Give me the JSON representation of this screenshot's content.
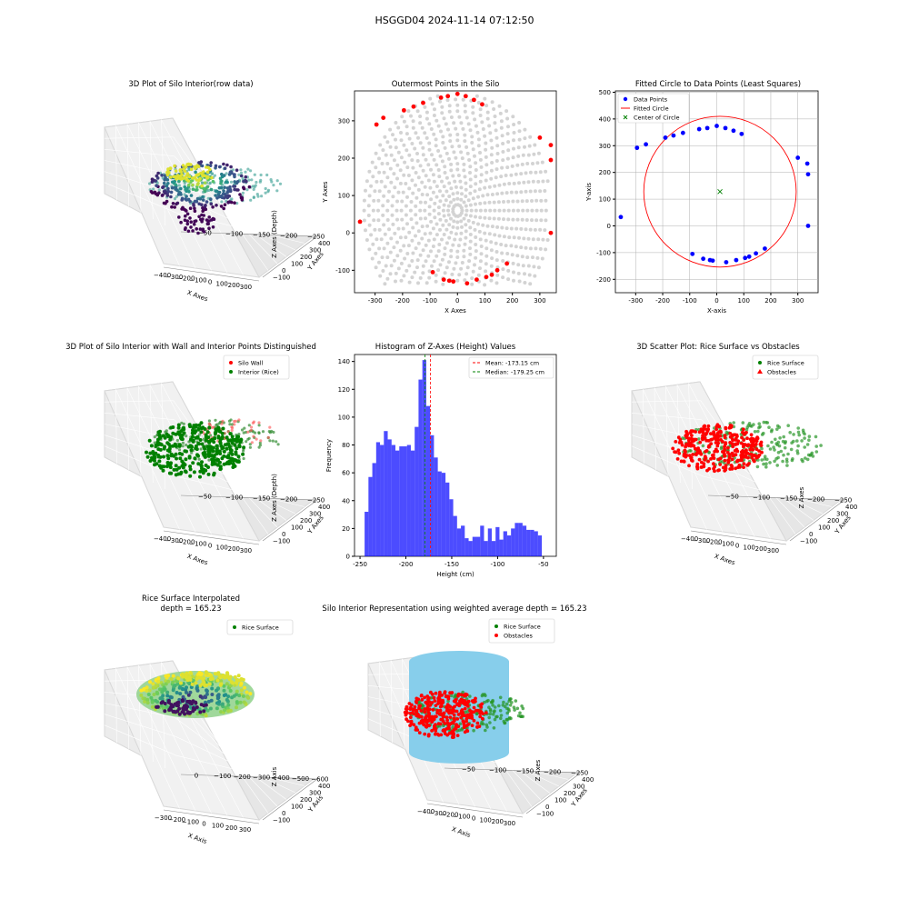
{
  "suptitle": "HSGGD04 2024-11-14 07:12:50",
  "chart_data": [
    {
      "id": "p1",
      "type": "scatter3d",
      "title": "3D Plot of Silo Interior(row data)",
      "xlabel": "X Axes",
      "ylabel": "Y Axes",
      "zlabel": "Z Axes (Depth)",
      "xticks": [
        "−400",
        "−300",
        "−200",
        "−100",
        "0",
        "100",
        "200",
        "300"
      ],
      "yticks": [
        "−100",
        "0",
        "100",
        "200",
        "300",
        "400"
      ],
      "zticks": [
        "−50",
        "−100",
        "−150",
        "−200",
        "−250"
      ],
      "colormap": "viridis"
    },
    {
      "id": "p2",
      "type": "scatter",
      "title": "Outermost Points in the Silo",
      "xlabel": "X Axes",
      "ylabel": "Y Axes",
      "xlim": [
        -375,
        360
      ],
      "ylim": [
        -160,
        380
      ],
      "xticks": [
        -300,
        -200,
        -100,
        0,
        100,
        200,
        300
      ],
      "yticks": [
        -100,
        0,
        100,
        200,
        300
      ],
      "outer_points": [
        [
          -355,
          30
        ],
        [
          -295,
          290
        ],
        [
          -270,
          308
        ],
        [
          -195,
          328
        ],
        [
          -160,
          338
        ],
        [
          -125,
          348
        ],
        [
          -60,
          362
        ],
        [
          -35,
          366
        ],
        [
          0,
          372
        ],
        [
          30,
          366
        ],
        [
          60,
          356
        ],
        [
          90,
          344
        ],
        [
          300,
          255
        ],
        [
          340,
          235
        ],
        [
          340,
          195
        ],
        [
          340,
          0
        ],
        [
          -90,
          -105
        ],
        [
          -50,
          -125
        ],
        [
          -30,
          -128
        ],
        [
          -15,
          -130
        ],
        [
          35,
          -135
        ],
        [
          70,
          -125
        ],
        [
          105,
          -118
        ],
        [
          125,
          -112
        ],
        [
          145,
          -100
        ],
        [
          180,
          -82
        ]
      ],
      "colors": {
        "interior": "#d3d3d3",
        "outer": "#ff0000"
      }
    },
    {
      "id": "p3",
      "type": "scatter+circle",
      "title": "Fitted Circle to Data Points (Least Squares)",
      "xlabel": "X-axis",
      "ylabel": "Y-axis",
      "xlim": [
        -375,
        375
      ],
      "ylim": [
        -250,
        505
      ],
      "xticks": [
        -300,
        -200,
        -100,
        0,
        100,
        200,
        300
      ],
      "yticks": [
        -200,
        -100,
        0,
        100,
        200,
        300,
        400,
        500
      ],
      "grid": true,
      "points": [
        [
          -355,
          33
        ],
        [
          -295,
          292
        ],
        [
          -262,
          305
        ],
        [
          -190,
          330
        ],
        [
          -160,
          338
        ],
        [
          -125,
          348
        ],
        [
          -65,
          362
        ],
        [
          -35,
          366
        ],
        [
          0,
          374
        ],
        [
          32,
          366
        ],
        [
          62,
          356
        ],
        [
          92,
          344
        ],
        [
          300,
          255
        ],
        [
          335,
          233
        ],
        [
          338,
          193
        ],
        [
          338,
          0
        ],
        [
          -90,
          -105
        ],
        [
          -50,
          -123
        ],
        [
          -25,
          -128
        ],
        [
          -15,
          -130
        ],
        [
          35,
          -136
        ],
        [
          72,
          -128
        ],
        [
          105,
          -120
        ],
        [
          120,
          -115
        ],
        [
          145,
          -103
        ],
        [
          178,
          -85
        ]
      ],
      "circle": {
        "cx": 12,
        "cy": 128,
        "r": 282
      },
      "legend": [
        "Data Points",
        "Fitted Circle",
        "Center of Circle"
      ],
      "legend_loc": "upper left",
      "colors": {
        "points": "#0000ff",
        "circle": "#ff0000",
        "center": "#008000"
      }
    },
    {
      "id": "p4",
      "type": "scatter3d",
      "title": "3D Plot of Silo Interior with Wall and Interior Points Distinguished",
      "xlabel": "X Axes",
      "ylabel": "Y Axes",
      "zlabel": "Z Axes (Depth)",
      "xticks": [
        "−400",
        "−300",
        "−200",
        "−100",
        "0",
        "100",
        "200",
        "300"
      ],
      "yticks": [
        "−100",
        "0",
        "100",
        "200",
        "300",
        "400"
      ],
      "zticks": [
        "−50",
        "−100",
        "−150",
        "−200",
        "−250"
      ],
      "series": [
        {
          "name": "Silo Wall",
          "color": "#ff0000"
        },
        {
          "name": "Interior (Rice)",
          "color": "#008000"
        }
      ]
    },
    {
      "id": "p5",
      "type": "bar",
      "title": "Histogram of Z-Axes (Height) Values",
      "xlabel": "Height (cm)",
      "ylabel": "Frequency",
      "xlim": [
        -256,
        -36
      ],
      "ylim": [
        0,
        145
      ],
      "xticks": [
        -250,
        -200,
        -150,
        -100,
        -50
      ],
      "yticks": [
        0,
        20,
        40,
        60,
        80,
        100,
        120,
        140
      ],
      "bin_start": -245,
      "bin_width": 4.2,
      "values": [
        32,
        57,
        67,
        82,
        80,
        90,
        84,
        80,
        76,
        79,
        79,
        80,
        76,
        93,
        127,
        141,
        108,
        87,
        71,
        61,
        60,
        53,
        41,
        29,
        20,
        22,
        13,
        11,
        14,
        14,
        22,
        11,
        20,
        11,
        21,
        12,
        18,
        15,
        20,
        24,
        24,
        22,
        19,
        19,
        18,
        15
      ],
      "bar_color": "#0000ff",
      "mean": -173.15,
      "median": -179.25,
      "legend": [
        "Mean: -173.15 cm",
        "Median: -179.25 cm"
      ],
      "legend_loc": "upper right"
    },
    {
      "id": "p6",
      "type": "scatter3d",
      "title": "3D Scatter Plot: Rice Surface vs Obstacles",
      "xlabel": "X Axes",
      "ylabel": "Y Axes",
      "zlabel": "Z Axes",
      "xticks": [
        "−400",
        "−300",
        "−200",
        "−100",
        "0",
        "100",
        "200",
        "300"
      ],
      "yticks": [
        "−100",
        "0",
        "100",
        "200",
        "300",
        "400"
      ],
      "zticks": [
        "−50",
        "−100",
        "−150",
        "−200",
        "−250"
      ],
      "series": [
        {
          "name": "Rice Surface",
          "color": "#008000"
        },
        {
          "name": "Obstacles",
          "color": "#ff0000"
        }
      ]
    },
    {
      "id": "p7",
      "type": "surface3d",
      "title": "Rice Surface Interpolated",
      "subtitle": "depth = 165.23",
      "xlabel": "X Axis",
      "ylabel": "Y Axis",
      "zlabel": "Z Axis",
      "xticks": [
        "−300",
        "−200",
        "−100",
        "0",
        "100",
        "200",
        "300"
      ],
      "yticks": [
        "−100",
        "0",
        "100",
        "200",
        "300",
        "400"
      ],
      "zticks": [
        "0",
        "−100",
        "−200",
        "−300",
        "−400",
        "−500",
        "−600"
      ],
      "series": [
        {
          "name": "Rice Surface",
          "color": "#008000"
        }
      ]
    },
    {
      "id": "p8",
      "type": "scatter3d",
      "title": "Silo Interior Representation using weighted average depth = 165.23",
      "xlabel": "X Axis",
      "ylabel": "Y Axes",
      "zlabel": "Z Axes",
      "xticks": [
        "−400",
        "−300",
        "−200",
        "−100",
        "0",
        "100",
        "200",
        "300"
      ],
      "yticks": [
        "−100",
        "0",
        "100",
        "200",
        "300",
        "400"
      ],
      "zticks": [
        "−50",
        "−100",
        "−150",
        "−200",
        "−250"
      ],
      "series": [
        {
          "name": "Rice Surface",
          "color": "#008000"
        },
        {
          "name": "Obstacles",
          "color": "#ff0000"
        }
      ],
      "cylinder_color": "#87ceeb"
    }
  ]
}
